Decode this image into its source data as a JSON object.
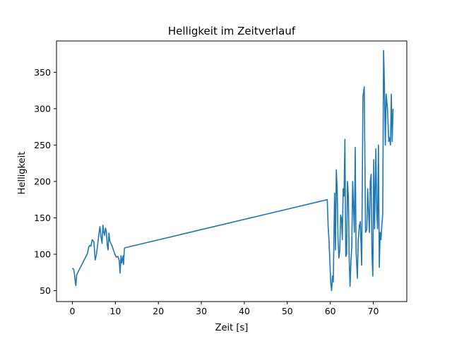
{
  "chart_data": {
    "type": "line",
    "title": "Helligkeit im Zeitverlauf",
    "xlabel": "Zeit [s]",
    "ylabel": "Helligkeit",
    "xlim": [
      -3.7,
      77.8
    ],
    "ylim": [
      35,
      393
    ],
    "xticks": [
      0,
      10,
      20,
      30,
      40,
      50,
      60,
      70
    ],
    "yticks": [
      50,
      100,
      150,
      200,
      250,
      300,
      350
    ],
    "grid": false,
    "line_color": "#1f77b4",
    "series": [
      {
        "x": [
          0.0,
          0.3,
          0.5,
          0.7,
          0.8,
          1.0,
          3.5,
          3.8,
          4.0,
          4.3,
          4.6,
          5.0,
          5.3,
          5.6,
          6.1,
          6.4,
          6.7,
          6.9,
          7.1,
          7.3,
          7.5,
          7.7,
          7.9,
          8.1,
          8.3,
          8.5,
          8.7,
          9.2,
          9.7,
          10.2,
          10.6,
          10.9,
          11.1,
          11.3,
          11.5,
          11.6,
          11.8,
          11.9,
          12.1,
          12.3,
          59.3,
          59.5,
          59.7,
          59.9,
          60.1,
          60.3,
          60.5,
          60.7,
          61.0,
          61.2,
          61.4,
          61.6,
          61.8,
          62.0,
          62.2,
          62.4,
          62.6,
          62.8,
          63.0,
          63.2,
          63.4,
          63.6,
          63.8,
          64.0,
          64.2,
          64.4,
          64.6,
          64.8,
          65.0,
          65.2,
          65.4,
          65.6,
          65.8,
          66.0,
          66.3,
          66.5,
          66.8,
          67.0,
          67.3,
          67.6,
          67.9,
          68.2,
          68.5,
          68.7,
          68.9,
          69.1,
          69.3,
          69.5,
          69.7,
          69.9,
          70.1,
          70.3,
          70.6,
          70.8,
          71.0,
          71.2,
          71.4,
          71.6,
          71.8,
          72.0,
          72.2,
          72.4,
          72.6,
          72.8,
          73.0,
          73.3,
          73.6,
          73.8,
          74.0,
          74.2,
          74.4,
          74.6
        ],
        "y": [
          81,
          79,
          72,
          60,
          57,
          72,
          101,
          110,
          112,
          111,
          120,
          117,
          92,
          100,
          124,
          138,
          122,
          115,
          140,
          130,
          126,
          136,
          131,
          113,
          106,
          129,
          118,
          112,
          103,
          96,
          97,
          91,
          74,
          98,
          88,
          93,
          98,
          86,
          108,
          109,
          175,
          138,
          119,
          90,
          61,
          50,
          70,
          62,
          184,
          106,
          216,
          190,
          120,
          95,
          105,
          154,
          150,
          120,
          190,
          180,
          258,
          97,
          100,
          200,
          180,
          95,
          56,
          90,
          110,
          200,
          165,
          130,
          247,
          105,
          67,
          120,
          140,
          145,
          85,
          316,
          330,
          130,
          134,
          190,
          160,
          130,
          200,
          210,
          100,
          70,
          230,
          135,
          245,
          160,
          135,
          250,
          82,
          130,
          120,
          140,
          155,
          380,
          330,
          250,
          320,
          300,
          255,
          260,
          250,
          320,
          255,
          300
        ]
      }
    ]
  }
}
